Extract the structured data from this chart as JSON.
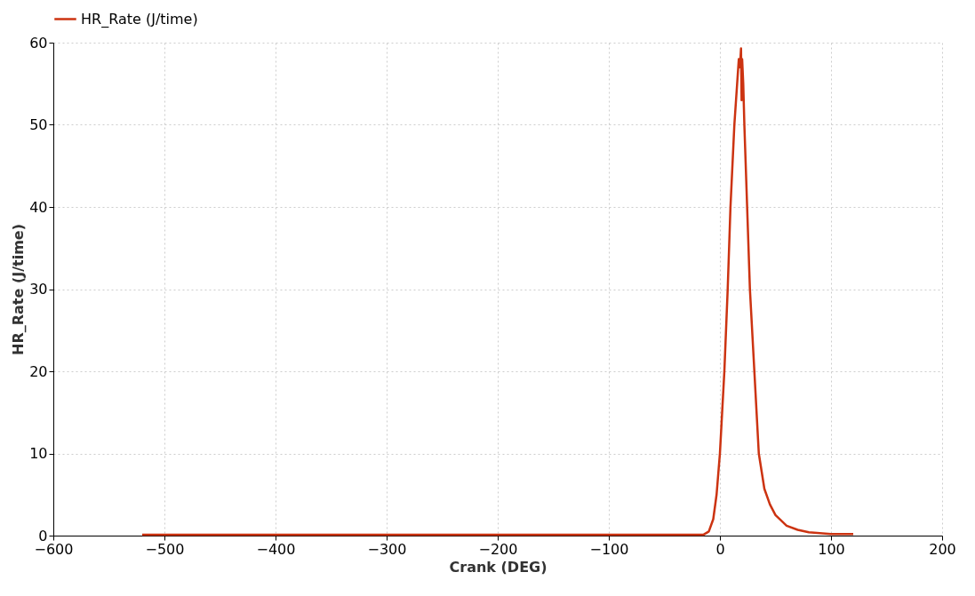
{
  "chart_data": {
    "type": "line",
    "xlabel": "Crank (DEG)",
    "ylabel": "HR_Rate (J/time)",
    "x": [
      -520,
      -15,
      -10,
      -6,
      -3,
      0,
      2,
      4,
      7,
      9.5,
      13,
      15,
      16,
      17,
      18,
      19,
      19.5,
      20,
      21,
      22,
      24.5,
      27,
      31,
      35,
      40,
      45,
      50,
      60,
      70,
      80,
      100,
      120
    ],
    "series": [
      {
        "name": "HR_Rate (J/time)",
        "color": "#cc3311",
        "values": [
          0.1,
          0.1,
          0.5,
          2,
          5,
          10,
          15,
          20,
          30,
          40,
          50,
          54,
          56,
          58,
          57,
          59.3,
          53,
          58,
          55,
          50,
          40,
          30,
          20,
          10,
          5.7,
          3.8,
          2.5,
          1.2,
          0.7,
          0.4,
          0.2,
          0.2
        ]
      }
    ],
    "xlim": [
      -600,
      200
    ],
    "xticks": [
      -600,
      -500,
      -400,
      -300,
      -200,
      -100,
      0,
      100,
      200
    ],
    "ylim": [
      0,
      60
    ],
    "yticks": [
      0,
      10,
      20,
      30,
      40,
      50,
      60
    ],
    "grid": true,
    "legend": "top",
    "marker": "none",
    "line_style": "solid"
  }
}
